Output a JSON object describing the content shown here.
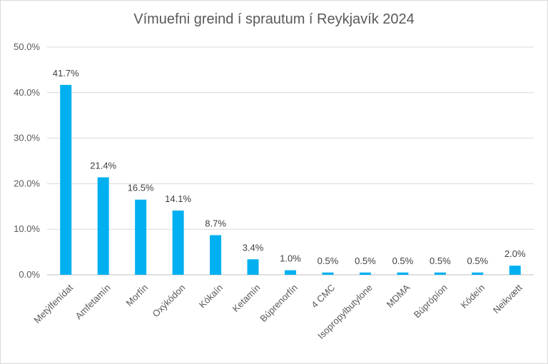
{
  "chart_data": {
    "type": "bar",
    "title": "Vímuefni greind í sprautum í Reykjavík 2024",
    "xlabel": "",
    "ylabel": "",
    "categories": [
      "Metýlfenídat",
      "Amfetamín",
      "Morfín",
      "Oxýkódon",
      "Kókaín",
      "Ketamín",
      "Búprenorfín",
      "4 CMC",
      "Isopropylbutylone",
      "MDMA",
      "Búprópíon",
      "Kódeín",
      "Neikvætt"
    ],
    "values": [
      41.7,
      21.4,
      16.5,
      14.1,
      8.7,
      3.4,
      1.0,
      0.5,
      0.5,
      0.5,
      0.5,
      0.5,
      2.0
    ],
    "data_labels": [
      "41.7%",
      "21.4%",
      "16.5%",
      "14.1%",
      "8.7%",
      "3.4%",
      "1.0%",
      "0.5%",
      "0.5%",
      "0.5%",
      "0.5%",
      "0.5%",
      "2.0%"
    ],
    "y_ticks": [
      0,
      10,
      20,
      30,
      40,
      50
    ],
    "y_tick_labels": [
      "0.0%",
      "10.0%",
      "20.0%",
      "30.0%",
      "40.0%",
      "50.0%"
    ],
    "ylim": [
      0,
      50
    ],
    "grid": true,
    "legend": "none",
    "colors": {
      "bar": "#00B0F0",
      "grid": "#d9d9d9",
      "text": "#595959"
    }
  }
}
